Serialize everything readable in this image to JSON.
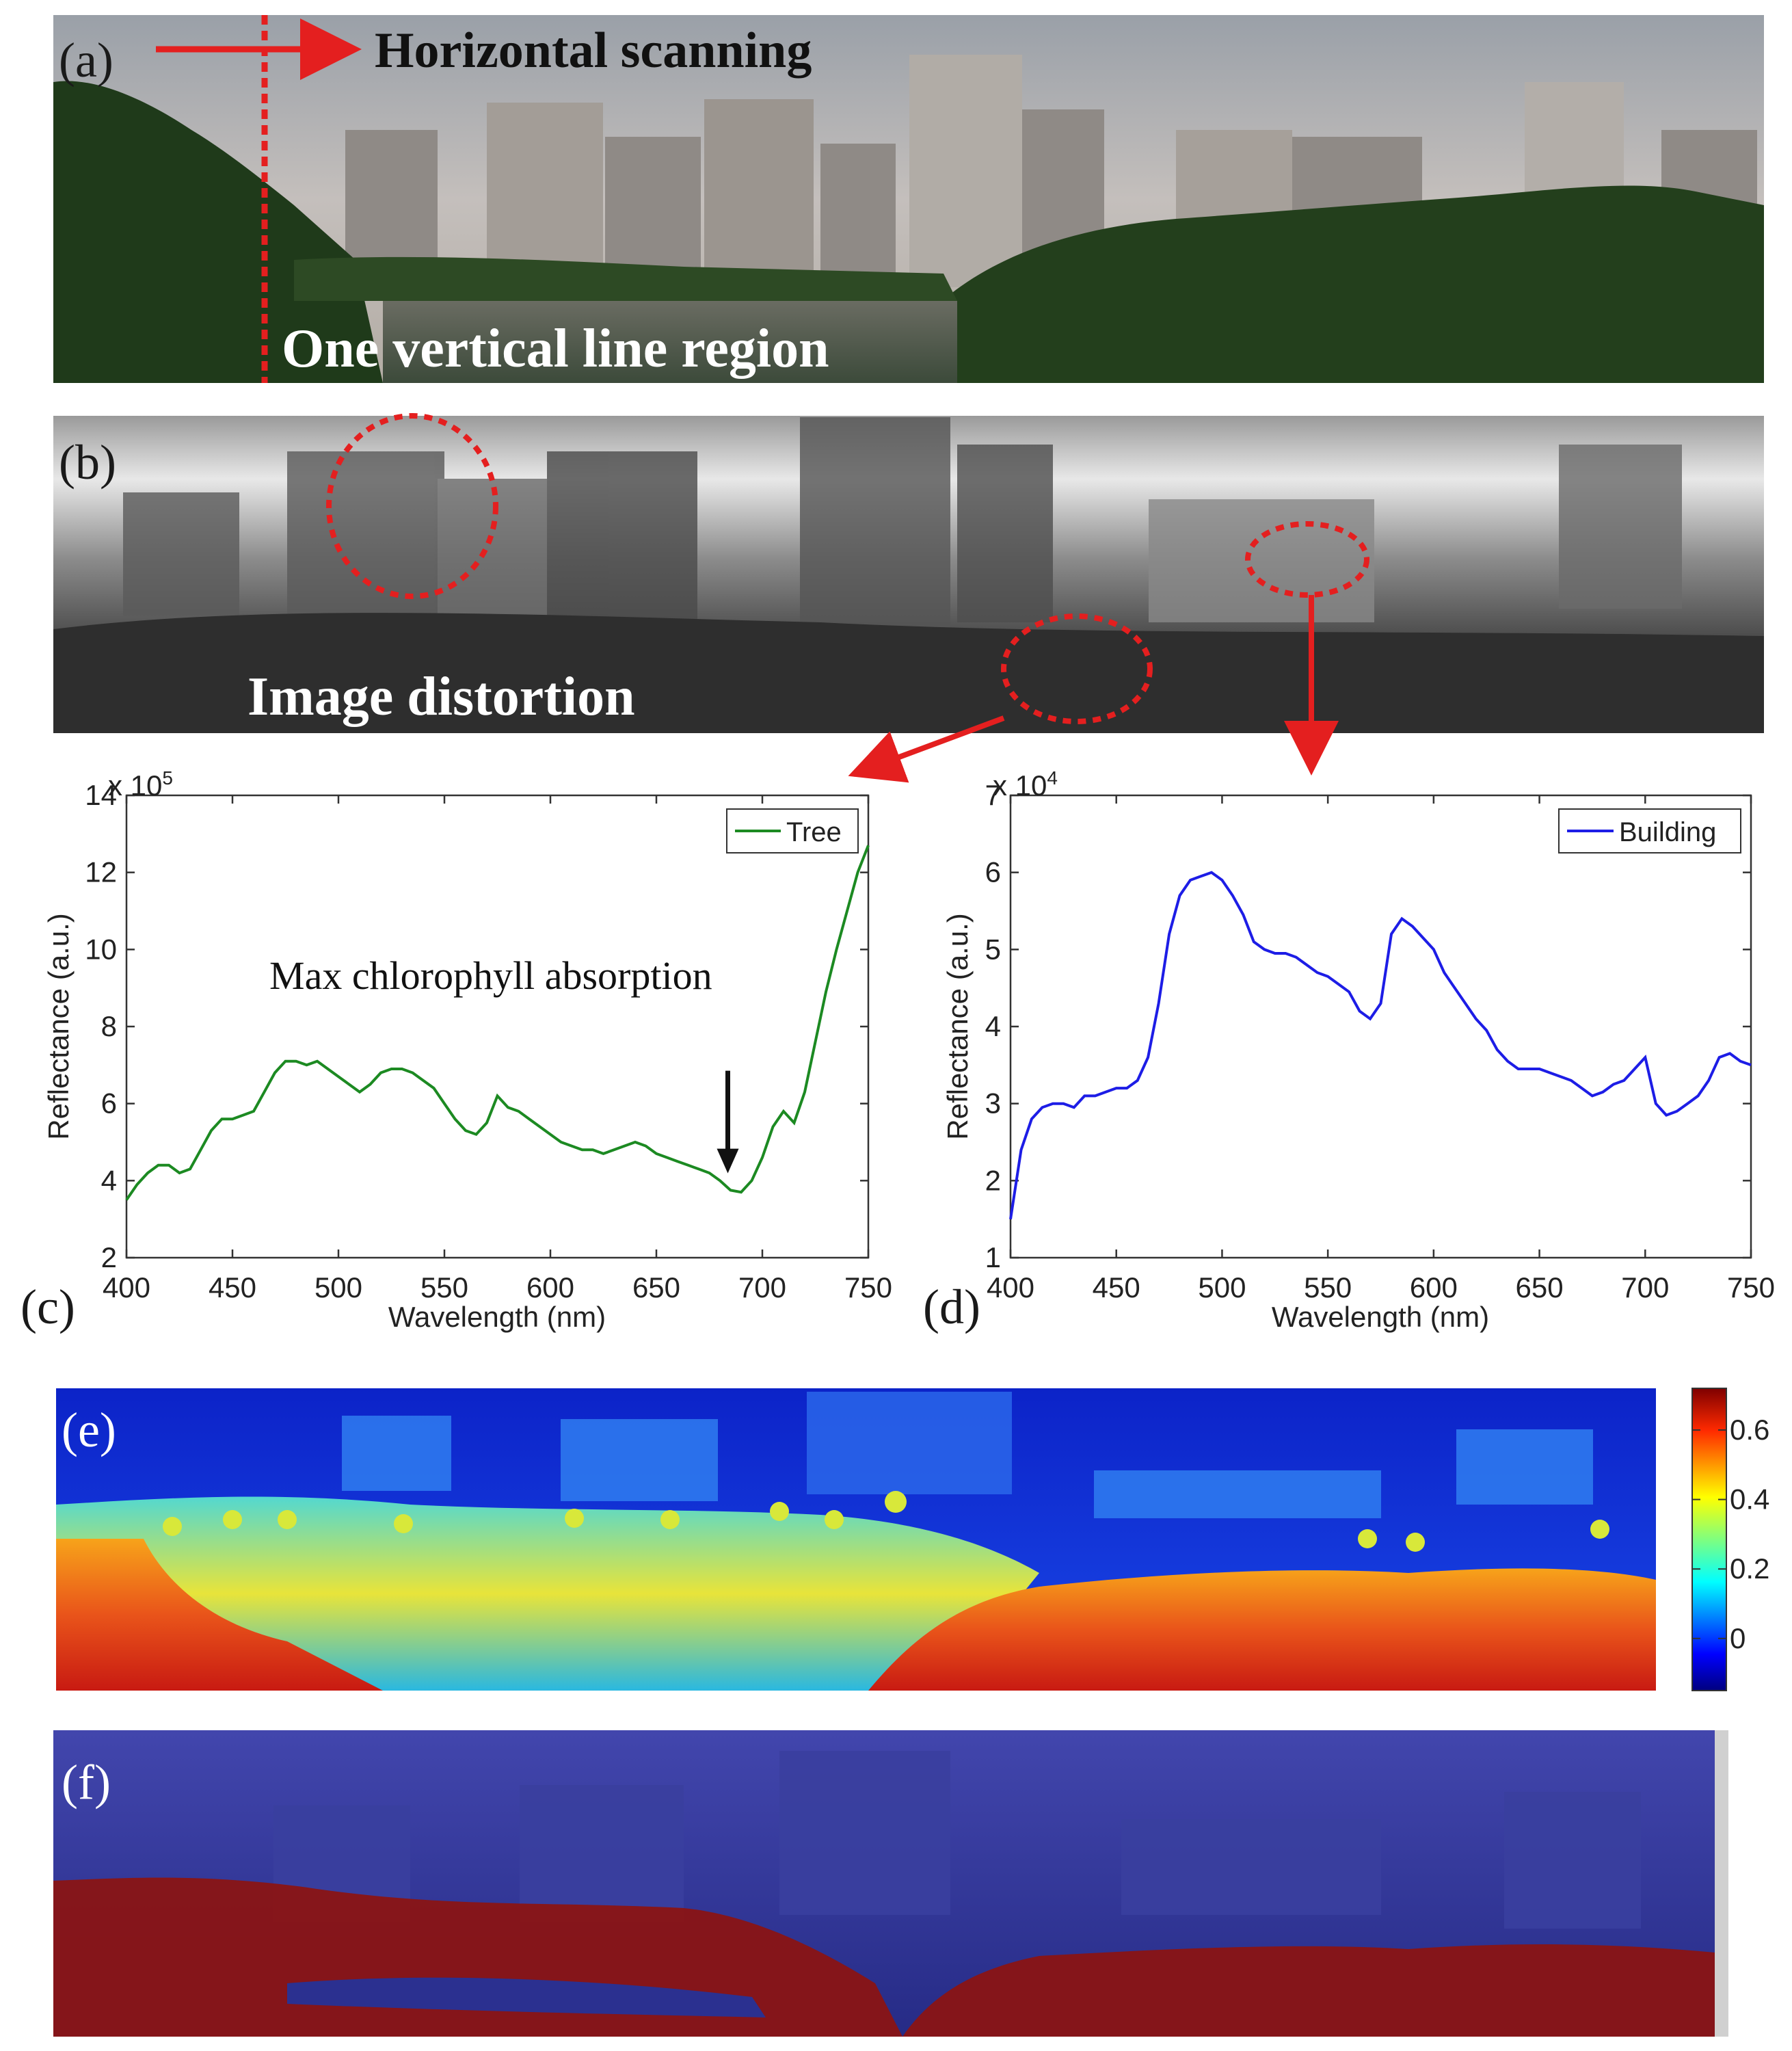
{
  "colors": {
    "red": "#e41f1f",
    "tree": "#1c8a22",
    "building": "#1d1de6",
    "sky": "#b8b4b2",
    "veg_dark": "#1f3a1a",
    "overlay_blue": "#2a2f96",
    "overlay_red": "#8a1414"
  },
  "panels": {
    "a": {
      "label": "(a)",
      "scan_text": "Horizontal scanning",
      "line_text": "One vertical line region"
    },
    "b": {
      "label": "(b)",
      "distortion_text": "Image distortion"
    },
    "e": {
      "label": "(e)",
      "colorbar_ticks": [
        "0",
        "0.2",
        "0.4",
        "0.6"
      ],
      "colorbar_range": [
        -0.15,
        0.72
      ]
    },
    "f": {
      "label": "(f)"
    }
  },
  "chart_data": [
    {
      "id": "c",
      "type": "line",
      "panel_label": "(c)",
      "xlabel": "Wavelength (nm)",
      "ylabel": "Reflectance (a.u.)",
      "exponent": "x 10",
      "exponent_power": "5",
      "xlim": [
        400,
        750
      ],
      "ylim": [
        2,
        14
      ],
      "xticks": [
        400,
        450,
        500,
        550,
        600,
        650,
        700,
        750
      ],
      "yticks": [
        2,
        4,
        6,
        8,
        10,
        12,
        14
      ],
      "legend_position": "top-right",
      "annotation": "Max chlorophyll absorption",
      "annotation_target": [
        685,
        3.8
      ],
      "series": [
        {
          "name": "Tree",
          "color": "#1c8a22",
          "x": [
            400,
            405,
            410,
            415,
            420,
            425,
            430,
            435,
            440,
            445,
            450,
            455,
            460,
            465,
            470,
            475,
            480,
            485,
            490,
            495,
            500,
            505,
            510,
            515,
            520,
            525,
            530,
            535,
            540,
            545,
            550,
            555,
            560,
            565,
            570,
            575,
            580,
            585,
            590,
            595,
            600,
            605,
            610,
            615,
            620,
            625,
            630,
            635,
            640,
            645,
            650,
            655,
            660,
            665,
            670,
            675,
            680,
            685,
            690,
            695,
            700,
            705,
            710,
            715,
            720,
            725,
            730,
            735,
            740,
            745,
            750
          ],
          "y": [
            3.5,
            3.9,
            4.2,
            4.4,
            4.4,
            4.2,
            4.3,
            4.8,
            5.3,
            5.6,
            5.6,
            5.7,
            5.8,
            6.3,
            6.8,
            7.1,
            7.1,
            7.0,
            7.1,
            6.9,
            6.7,
            6.5,
            6.3,
            6.5,
            6.8,
            6.9,
            6.9,
            6.8,
            6.6,
            6.4,
            6.0,
            5.6,
            5.3,
            5.2,
            5.5,
            6.2,
            5.9,
            5.8,
            5.6,
            5.4,
            5.2,
            5.0,
            4.9,
            4.8,
            4.8,
            4.7,
            4.8,
            4.9,
            5.0,
            4.9,
            4.7,
            4.6,
            4.5,
            4.4,
            4.3,
            4.2,
            4.0,
            3.75,
            3.7,
            4.0,
            4.6,
            5.4,
            5.8,
            5.5,
            6.3,
            7.6,
            8.9,
            10.0,
            11.0,
            12.0,
            12.7
          ]
        }
      ]
    },
    {
      "id": "d",
      "type": "line",
      "panel_label": "(d)",
      "xlabel": "Wavelength (nm)",
      "ylabel": "Reflectance (a.u.)",
      "exponent": "x 10",
      "exponent_power": "4",
      "xlim": [
        400,
        750
      ],
      "ylim": [
        1,
        7
      ],
      "xticks": [
        400,
        450,
        500,
        550,
        600,
        650,
        700,
        750
      ],
      "yticks": [
        1,
        2,
        3,
        4,
        5,
        6,
        7
      ],
      "legend_position": "top-right",
      "series": [
        {
          "name": "Building",
          "color": "#1d1de6",
          "x": [
            400,
            405,
            410,
            415,
            420,
            425,
            430,
            435,
            440,
            445,
            450,
            455,
            460,
            465,
            470,
            475,
            480,
            485,
            490,
            495,
            500,
            505,
            510,
            515,
            520,
            525,
            530,
            535,
            540,
            545,
            550,
            555,
            560,
            565,
            570,
            575,
            580,
            585,
            590,
            595,
            600,
            605,
            610,
            615,
            620,
            625,
            630,
            635,
            640,
            645,
            650,
            655,
            660,
            665,
            670,
            675,
            680,
            685,
            690,
            695,
            700,
            705,
            710,
            715,
            720,
            725,
            730,
            735,
            740,
            745,
            750
          ],
          "y": [
            1.5,
            2.4,
            2.8,
            2.95,
            3.0,
            3.0,
            2.95,
            3.1,
            3.1,
            3.15,
            3.2,
            3.2,
            3.3,
            3.6,
            4.3,
            5.2,
            5.7,
            5.9,
            5.95,
            6.0,
            5.9,
            5.7,
            5.45,
            5.1,
            5.0,
            4.95,
            4.95,
            4.9,
            4.8,
            4.7,
            4.65,
            4.55,
            4.45,
            4.2,
            4.1,
            4.3,
            5.2,
            5.4,
            5.3,
            5.15,
            5.0,
            4.7,
            4.5,
            4.3,
            4.1,
            3.95,
            3.7,
            3.55,
            3.45,
            3.45,
            3.45,
            3.4,
            3.35,
            3.3,
            3.2,
            3.1,
            3.15,
            3.25,
            3.3,
            3.45,
            3.6,
            3.0,
            2.85,
            2.9,
            3.0,
            3.1,
            3.3,
            3.6,
            3.65,
            3.55,
            3.5
          ]
        }
      ]
    }
  ]
}
